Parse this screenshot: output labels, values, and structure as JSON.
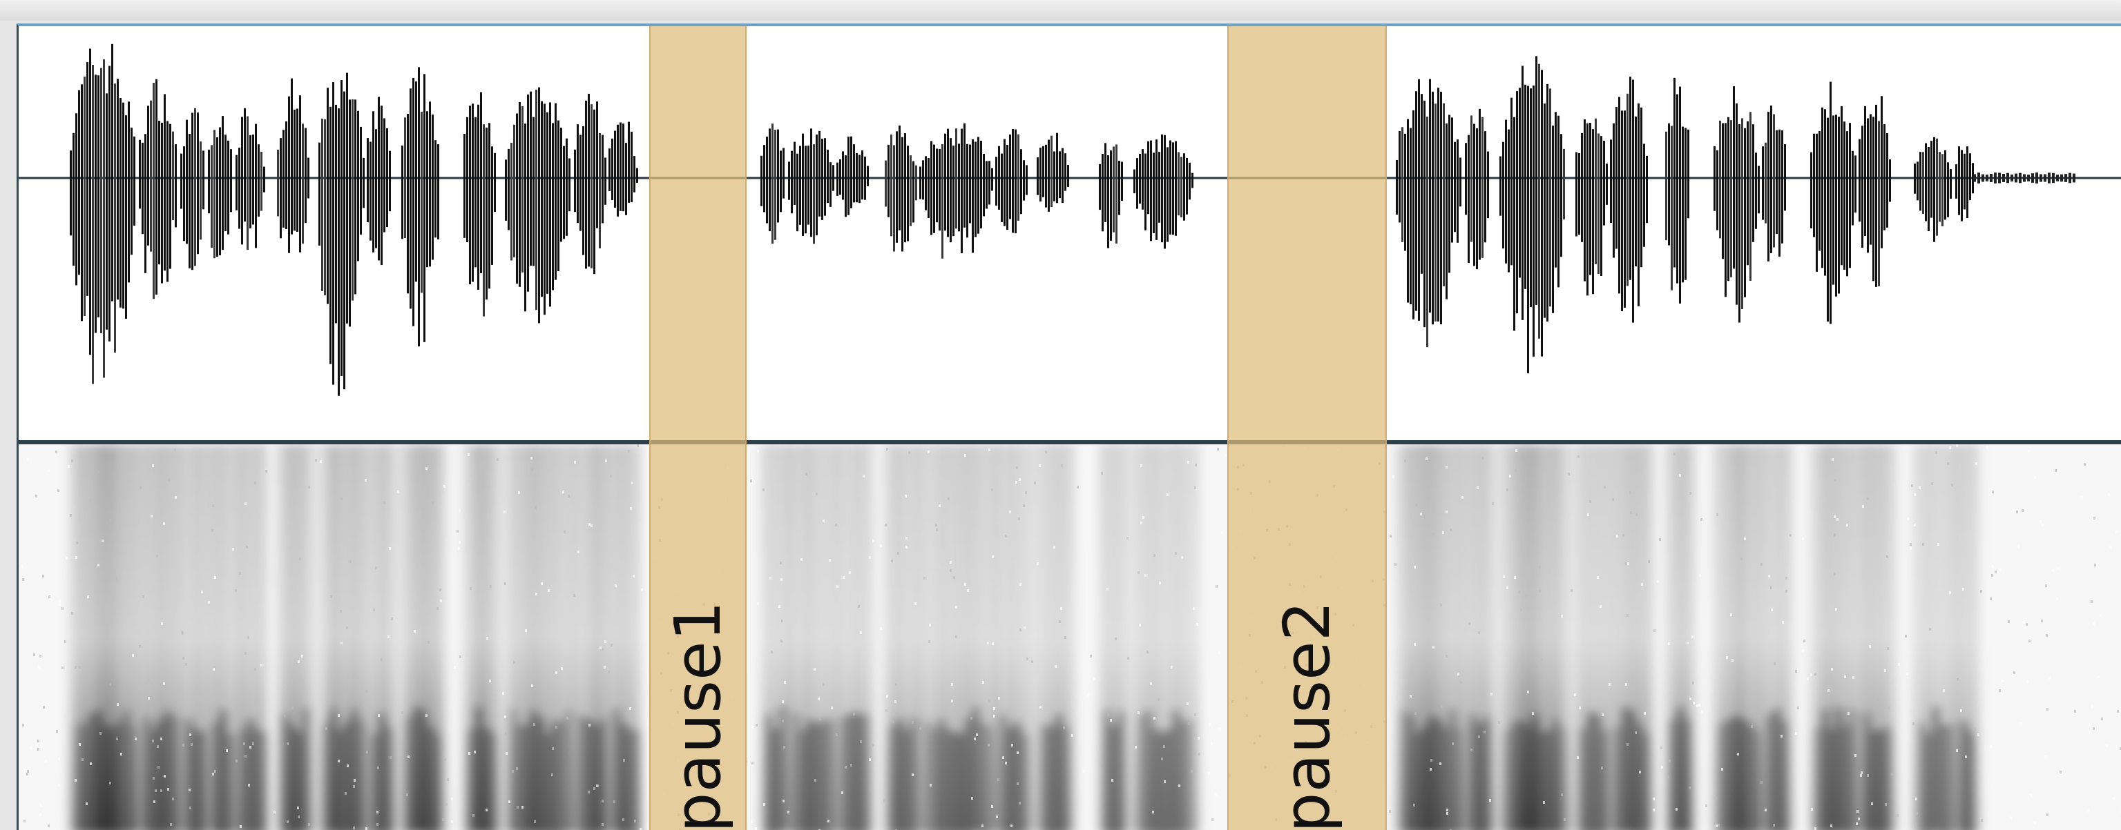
{
  "regions": [
    {
      "label": "pause1"
    },
    {
      "label": "pause2"
    }
  ],
  "colors": {
    "waveform": "#111111",
    "highlight": "#debc7a",
    "divider": "#2b3f4d",
    "accent_border": "#6fa2c2"
  }
}
